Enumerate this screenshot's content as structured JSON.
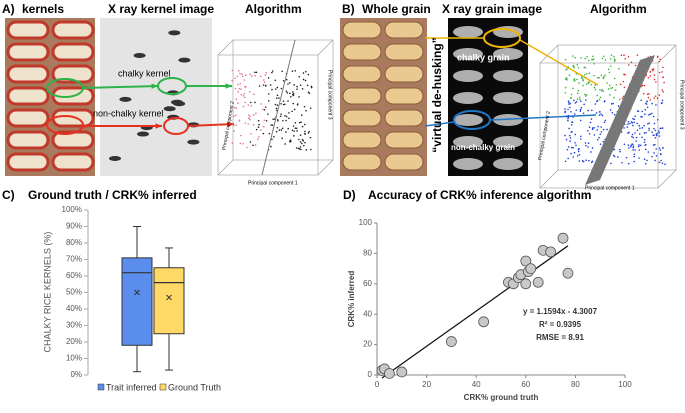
{
  "panels": {
    "a": {
      "letter": "A)",
      "photo_title": "kernels",
      "xray_title": "X ray kernel image",
      "algo_title": "Algorithm",
      "chalky": "chalky  kernel",
      "non_chalky": "non-chalky kernel",
      "pc1": "Principal component 1",
      "pc2": "Principal component 2",
      "pc3": "Principal component 3"
    },
    "b": {
      "letter": "B)",
      "photo_title": "Whole grain",
      "xray_title": "X ray grain image",
      "algo_title": "Algorithm",
      "dehusk": "“virtual de-husking”",
      "chalky": "chalky  grain",
      "non_chalky": "non-chalky grain",
      "pc1": "Principal component 1",
      "pc2": "Principal component 2",
      "pc3": "Principal component 3"
    }
  },
  "chart_data": [
    {
      "type": "box",
      "letter": "C)",
      "title": "Ground truth / CRK% inferred",
      "ylabel": "CHALKY RICE KERNELS (%)",
      "ylim": [
        0,
        100
      ],
      "yticks": [
        {
          "value": 0,
          "label": "0%"
        },
        {
          "value": 10,
          "label": "10%"
        },
        {
          "value": 20,
          "label": "20%"
        },
        {
          "value": 30,
          "label": "30%"
        },
        {
          "value": 40,
          "label": "40%"
        },
        {
          "value": 50,
          "label": "50%"
        },
        {
          "value": 60,
          "label": "60%"
        },
        {
          "value": 70,
          "label": "70%"
        },
        {
          "value": 80,
          "label": "80%"
        },
        {
          "value": 90,
          "label": "90%"
        },
        {
          "value": 100,
          "label": "100%"
        }
      ],
      "series": [
        {
          "name": "Trait inferred",
          "color": "#5b8def",
          "min": 2,
          "q1": 18,
          "median": 62,
          "q3": 71,
          "max": 90,
          "mean": 50
        },
        {
          "name": "Ground Truth",
          "color": "#ffd966",
          "min": 3,
          "q1": 25,
          "median": 56,
          "q3": 65,
          "max": 77,
          "mean": 47
        }
      ]
    },
    {
      "type": "scatter",
      "letter": "D)",
      "title": "Accuracy of CRK% inference algorithm",
      "xlabel": "CRK% ground truth",
      "ylabel": "CRK% inferred",
      "xlim": [
        0,
        100
      ],
      "xticks": [
        0,
        20,
        40,
        60,
        80,
        100
      ],
      "ylim": [
        0,
        100
      ],
      "yticks": [
        0,
        20,
        40,
        60,
        80,
        100
      ],
      "color": "#c8c8c8",
      "x": [
        2,
        3,
        5,
        10,
        30,
        43,
        53,
        55,
        57,
        58,
        60,
        60,
        61,
        62,
        65,
        67,
        70,
        75,
        77
      ],
      "values": [
        3,
        4,
        1,
        2,
        22,
        35,
        61,
        60,
        64,
        66,
        60,
        75,
        68,
        70,
        61,
        82,
        81,
        90,
        67
      ],
      "trendline": {
        "slope": 1.1594,
        "intercept": -4.3007,
        "label": "y = 1.1594x - 4.3007"
      },
      "annotations": [
        "R² = 0.9395",
        "RMSE = 8.91"
      ]
    }
  ]
}
